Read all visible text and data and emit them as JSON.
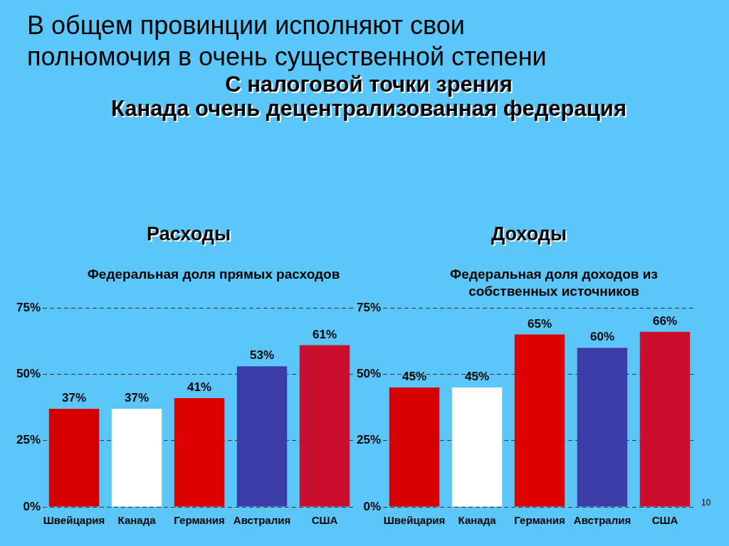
{
  "chart_data": [
    {
      "type": "bar",
      "title": "Расходы",
      "subtitle": "Федеральная доля прямых расходов",
      "annotations": [
        "В общем провинции исполняют свои полномочия в очень существенной степени",
        "С налоговой точки зрения",
        "Канада очень децентрализованная федерация"
      ],
      "categories": [
        "Швейцария",
        "Канада",
        "Германия",
        "Австралия",
        "США"
      ],
      "values": [
        37,
        37,
        41,
        53,
        61
      ],
      "colors": [
        "#d40000",
        "#ffffff",
        "#dd0000",
        "#3c3ca8",
        "#c8102e"
      ],
      "value_labels": [
        "37%",
        "37%",
        "41%",
        "53%",
        "61%"
      ],
      "ylim": [
        0,
        75
      ],
      "yticks": [
        {
          "value": 0,
          "label": "0%"
        },
        {
          "value": 25,
          "label": "25%"
        },
        {
          "value": 50,
          "label": "50%"
        },
        {
          "value": 75,
          "label": "75%"
        }
      ],
      "grid": "y"
    },
    {
      "type": "bar",
      "title": "Доходы",
      "subtitle": "Федеральная доля доходов из собственных источников",
      "annotations": [
        "10"
      ],
      "categories": [
        "Швейцария",
        "Канада",
        "Германия",
        "Австралия",
        "США"
      ],
      "values": [
        45,
        45,
        65,
        60,
        66
      ],
      "colors": [
        "#d40000",
        "#ffffff",
        "#dd0000",
        "#3c3ca8",
        "#c8102e"
      ],
      "value_labels": [
        "45%",
        "45%",
        "65%",
        "60%",
        "66%"
      ],
      "ylim": [
        0,
        75
      ],
      "yticks": [
        {
          "value": 0,
          "label": "0%"
        },
        {
          "value": 25,
          "label": "25%"
        },
        {
          "value": 50,
          "label": "50%"
        },
        {
          "value": 75,
          "label": "75%"
        }
      ],
      "grid": "y"
    }
  ]
}
